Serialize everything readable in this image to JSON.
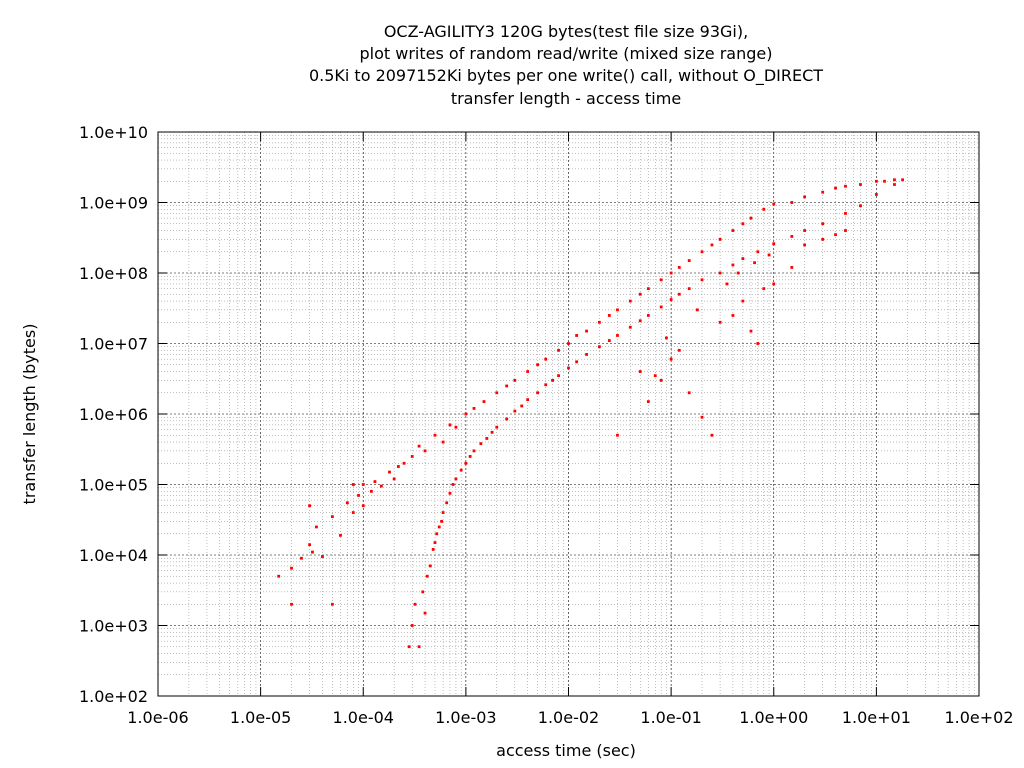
{
  "chart_data": {
    "type": "scatter",
    "title_lines": [
      "OCZ-AGILITY3 120G bytes(test file size 93Gi),",
      "plot writes of random read/write (mixed size range)",
      "0.5Ki to 2097152Ki bytes per one write() call, without O_DIRECT",
      "transfer length - access time"
    ],
    "xlabel": "access time (sec)",
    "ylabel": "transfer length (bytes)",
    "x_scale": "log",
    "y_scale": "log",
    "xlim": [
      1e-06,
      100
    ],
    "ylim": [
      100,
      10000000000.0
    ],
    "x_ticks": [
      {
        "value": 1e-06,
        "label": "1.0e-06"
      },
      {
        "value": 1e-05,
        "label": "1.0e-05"
      },
      {
        "value": 0.0001,
        "label": "1.0e-04"
      },
      {
        "value": 0.001,
        "label": "1.0e-03"
      },
      {
        "value": 0.01,
        "label": "1.0e-02"
      },
      {
        "value": 0.1,
        "label": "1.0e-01"
      },
      {
        "value": 1.0,
        "label": "1.0e+00"
      },
      {
        "value": 10.0,
        "label": "1.0e+01"
      },
      {
        "value": 100.0,
        "label": "1.0e+02"
      }
    ],
    "y_ticks": [
      {
        "value": 100.0,
        "label": "1.0e+02"
      },
      {
        "value": 1000.0,
        "label": "1.0e+03"
      },
      {
        "value": 10000.0,
        "label": "1.0e+04"
      },
      {
        "value": 100000.0,
        "label": "1.0e+05"
      },
      {
        "value": 1000000.0,
        "label": "1.0e+06"
      },
      {
        "value": 10000000.0,
        "label": "1.0e+07"
      },
      {
        "value": 100000000.0,
        "label": "1.0e+08"
      },
      {
        "value": 1000000000.0,
        "label": "1.0e+09"
      },
      {
        "value": 10000000000.0,
        "label": "1.0e+10"
      }
    ],
    "grid": true,
    "minor_grid": true,
    "legend": "none",
    "marker_color": "#ff0000",
    "series": [
      {
        "points": [
          [
            1.5e-05,
            5000
          ],
          [
            2e-05,
            2000
          ],
          [
            2e-05,
            6500
          ],
          [
            2.5e-05,
            9000
          ],
          [
            3e-05,
            14000
          ],
          [
            3e-05,
            50000
          ],
          [
            3.2e-05,
            11000
          ],
          [
            3.5e-05,
            25000
          ],
          [
            4e-05,
            9500
          ],
          [
            5e-05,
            2000
          ],
          [
            5e-05,
            35000
          ],
          [
            6e-05,
            19000
          ],
          [
            7e-05,
            55000
          ],
          [
            8e-05,
            40000
          ],
          [
            8e-05,
            100000
          ],
          [
            9e-05,
            70000
          ],
          [
            0.0001,
            50000
          ],
          [
            0.0001,
            100000
          ],
          [
            0.00012,
            80000
          ],
          [
            0.00013,
            110000
          ],
          [
            0.00015,
            95000
          ],
          [
            0.00018,
            150000
          ],
          [
            0.0002,
            120000
          ],
          [
            0.00022,
            180000
          ],
          [
            0.00025,
            200000
          ],
          [
            0.0003,
            250000
          ],
          [
            0.00035,
            350000
          ],
          [
            0.0004,
            300000
          ],
          [
            0.0005,
            500000
          ],
          [
            0.0006,
            400000
          ],
          [
            0.0007,
            700000
          ],
          [
            0.0008,
            650000
          ],
          [
            0.001,
            1000000
          ],
          [
            0.0012,
            1200000
          ],
          [
            0.0015,
            1500000
          ],
          [
            0.002,
            2000000
          ],
          [
            0.0025,
            2500000
          ],
          [
            0.003,
            3000000
          ],
          [
            0.004,
            4000000
          ],
          [
            0.005,
            5000000
          ],
          [
            0.006,
            6000000
          ],
          [
            0.008,
            8000000
          ],
          [
            0.01,
            10000000
          ],
          [
            0.012,
            13000000
          ],
          [
            0.015,
            15000000
          ],
          [
            0.02,
            20000000
          ],
          [
            0.025,
            25000000
          ],
          [
            0.03,
            30000000
          ],
          [
            0.04,
            40000000
          ],
          [
            0.05,
            50000000
          ],
          [
            0.06,
            60000000
          ],
          [
            0.08,
            80000000
          ],
          [
            0.1,
            100000000
          ],
          [
            0.12,
            120000000
          ],
          [
            0.15,
            150000000
          ],
          [
            0.2,
            200000000
          ],
          [
            0.25,
            250000000
          ],
          [
            0.3,
            300000000
          ],
          [
            0.4,
            400000000
          ],
          [
            0.5,
            500000000
          ],
          [
            0.6,
            600000000
          ],
          [
            0.8,
            800000000
          ],
          [
            1,
            950000000
          ],
          [
            1.5,
            1000000000
          ],
          [
            2,
            1200000000
          ],
          [
            3,
            1400000000
          ],
          [
            4,
            1600000000
          ],
          [
            5,
            1700000000
          ],
          [
            7,
            1800000000
          ],
          [
            10,
            2000000000
          ],
          [
            12,
            2000000000
          ],
          [
            15,
            2100000000
          ],
          [
            18,
            2100000000
          ],
          [
            0.00028,
            500
          ],
          [
            0.0003,
            1000
          ],
          [
            0.00032,
            2000
          ],
          [
            0.00035,
            500
          ],
          [
            0.00038,
            3000
          ],
          [
            0.0004,
            1500
          ],
          [
            0.00042,
            5000
          ],
          [
            0.00045,
            7000
          ],
          [
            0.00048,
            12000
          ],
          [
            0.0005,
            15000
          ],
          [
            0.00052,
            20000
          ],
          [
            0.00055,
            25000
          ],
          [
            0.00058,
            30000
          ],
          [
            0.0006,
            40000
          ],
          [
            0.00065,
            55000
          ],
          [
            0.0007,
            75000
          ],
          [
            0.00075,
            100000
          ],
          [
            0.0008,
            120000
          ],
          [
            0.0009,
            160000
          ],
          [
            0.001,
            200000
          ],
          [
            0.0011,
            250000
          ],
          [
            0.0012,
            300000
          ],
          [
            0.0014,
            380000
          ],
          [
            0.0016,
            450000
          ],
          [
            0.0018,
            550000
          ],
          [
            0.002,
            650000
          ],
          [
            0.0025,
            850000
          ],
          [
            0.003,
            1100000
          ],
          [
            0.0035,
            1300000
          ],
          [
            0.004,
            1600000
          ],
          [
            0.005,
            2000000
          ],
          [
            0.006,
            2600000
          ],
          [
            0.007,
            3000000
          ],
          [
            0.008,
            3500000
          ],
          [
            0.01,
            4500000
          ],
          [
            0.012,
            5500000
          ],
          [
            0.015,
            7000000
          ],
          [
            0.02,
            9000000
          ],
          [
            0.025,
            11000000
          ],
          [
            0.03,
            13000000
          ],
          [
            0.04,
            17000000
          ],
          [
            0.05,
            21000000
          ],
          [
            0.06,
            25000000
          ],
          [
            0.08,
            33000000
          ],
          [
            0.1,
            42000000
          ],
          [
            0.12,
            50000000
          ],
          [
            0.15,
            60000000
          ],
          [
            0.2,
            80000000
          ],
          [
            0.3,
            100000000
          ],
          [
            0.4,
            130000000
          ],
          [
            0.5,
            160000000
          ],
          [
            0.7,
            200000000
          ],
          [
            1,
            260000000
          ],
          [
            1.5,
            330000000
          ],
          [
            2,
            400000000
          ],
          [
            3,
            500000000
          ],
          [
            5,
            700000000
          ],
          [
            7,
            900000000
          ],
          [
            10,
            1300000000
          ],
          [
            15,
            1800000000
          ],
          [
            0.05,
            4000000
          ],
          [
            0.08,
            3000000
          ],
          [
            0.1,
            6000000
          ],
          [
            0.15,
            2000000
          ],
          [
            0.2,
            900000
          ],
          [
            0.25,
            500000
          ],
          [
            0.3,
            20000000
          ],
          [
            0.4,
            25000000
          ],
          [
            0.5,
            40000000
          ],
          [
            0.6,
            15000000
          ],
          [
            0.7,
            10000000
          ],
          [
            0.8,
            60000000
          ],
          [
            1,
            70000000
          ],
          [
            1.5,
            120000000
          ],
          [
            2,
            250000000
          ],
          [
            3,
            300000000
          ],
          [
            4,
            350000000
          ],
          [
            5,
            400000000
          ],
          [
            0.03,
            500000
          ],
          [
            0.06,
            1500000
          ],
          [
            0.07,
            3500000
          ],
          [
            0.12,
            8000000
          ],
          [
            0.09,
            12000000
          ],
          [
            0.18,
            30000000
          ],
          [
            0.35,
            70000000
          ],
          [
            0.45,
            100000000
          ],
          [
            0.65,
            140000000
          ],
          [
            0.9,
            180000000
          ]
        ]
      }
    ]
  }
}
